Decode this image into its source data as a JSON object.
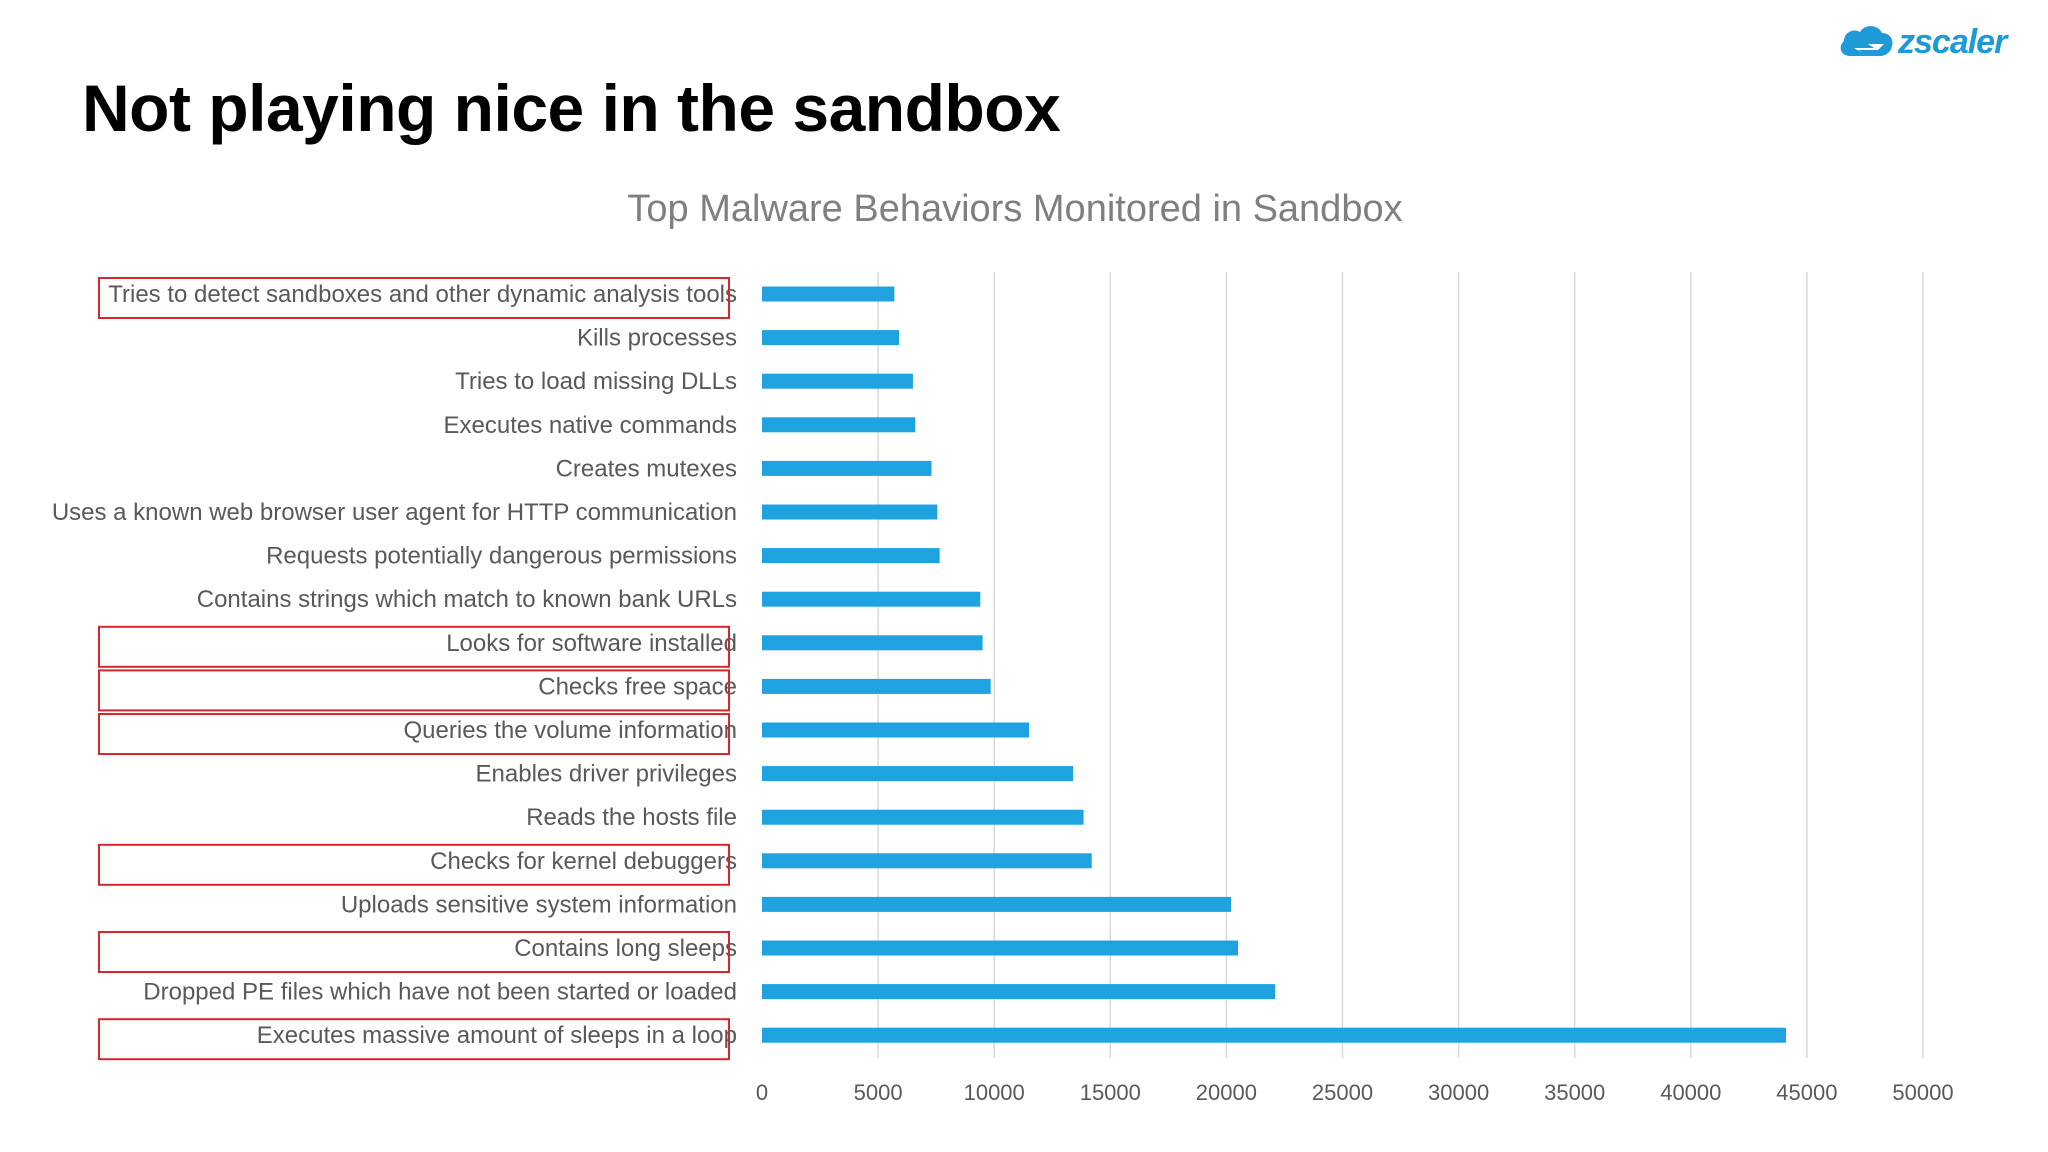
{
  "slide": {
    "title": "Not playing nice in the sandbox",
    "logo_text": "zscaler",
    "logo_icon": "zscaler-cloud-icon"
  },
  "colors": {
    "bar": "#1fa3e0",
    "highlight_box": "#d9262c",
    "grid": "#d9d9d9",
    "logo": "#1e9ad6"
  },
  "chart_data": {
    "type": "bar",
    "orientation": "horizontal",
    "title": "Top Malware Behaviors Monitored in Sandbox",
    "xlabel": "",
    "ylabel": "",
    "xlim": [
      0,
      50000
    ],
    "x_ticks": [
      0,
      5000,
      10000,
      15000,
      20000,
      25000,
      30000,
      35000,
      40000,
      45000,
      50000
    ],
    "grid": "vertical",
    "categories": [
      "Tries to detect sandboxes and other dynamic analysis tools",
      "Kills processes",
      "Tries to load missing DLLs",
      "Executes native commands",
      "Creates mutexes",
      "Uses a known web browser user agent for HTTP communication",
      "Requests potentially dangerous permissions",
      "Contains strings which match to known bank URLs",
      "Looks for software installed",
      "Checks free space",
      "Queries the volume information",
      "Enables driver privileges",
      "Reads the hosts file",
      "Checks for kernel debuggers",
      "Uploads sensitive system information",
      "Contains long sleeps",
      "Dropped PE files which have not been started or loaded",
      "Executes massive amount of sleeps in a loop"
    ],
    "values": [
      5700,
      5900,
      6500,
      6600,
      7300,
      7550,
      7650,
      9400,
      9500,
      9850,
      11500,
      13400,
      13850,
      14200,
      20200,
      20500,
      22100,
      44100
    ],
    "highlighted": [
      true,
      false,
      false,
      false,
      false,
      false,
      false,
      false,
      true,
      true,
      true,
      false,
      false,
      true,
      false,
      true,
      false,
      true
    ]
  }
}
